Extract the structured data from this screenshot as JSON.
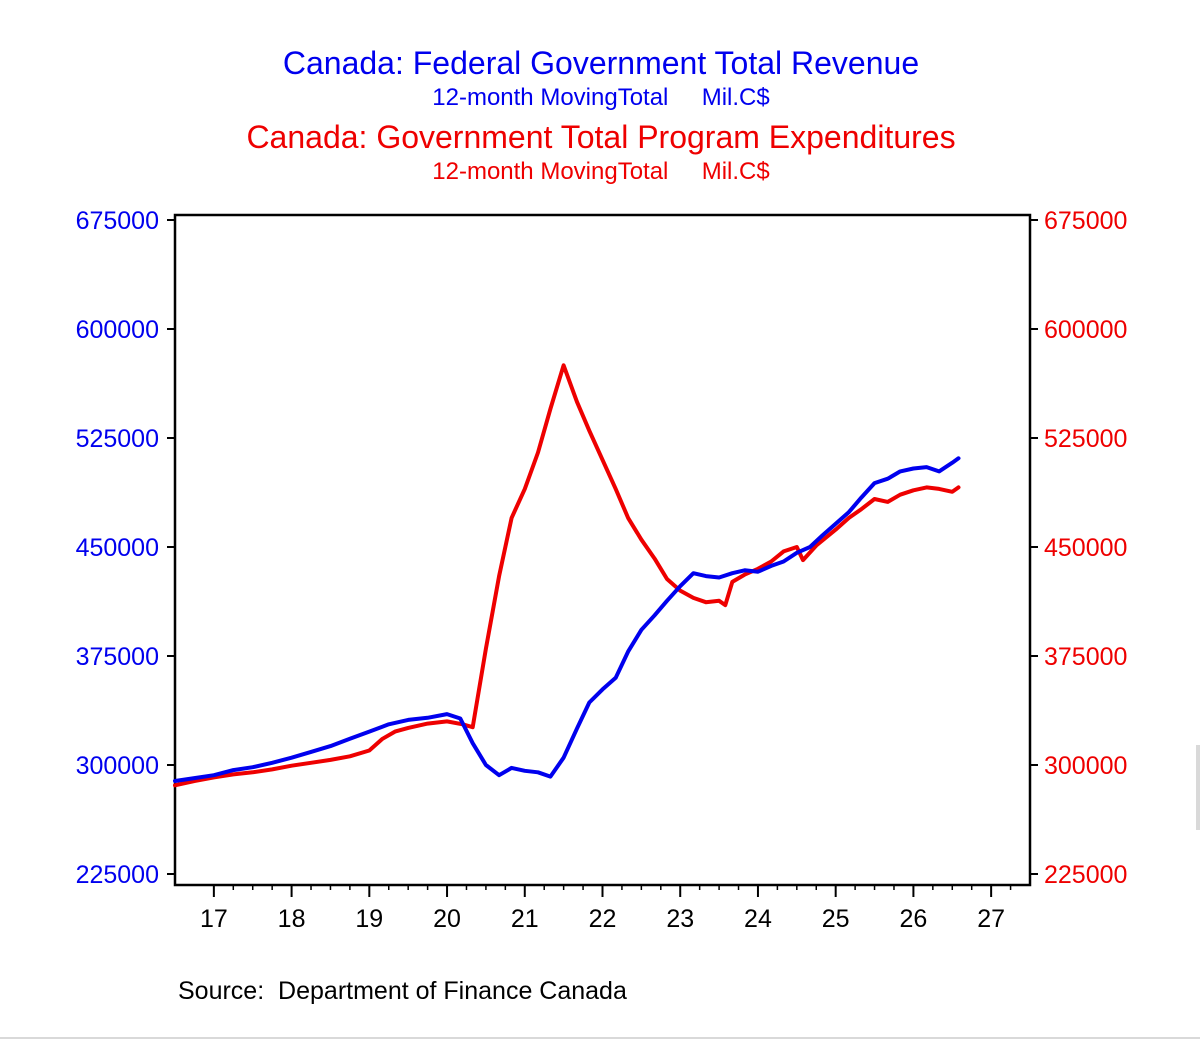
{
  "header": {
    "revenue_title": "Canada: Federal Government Total Revenue",
    "revenue_subtitle": "12-month MovingTotal     Mil.C$",
    "expenditure_title": "Canada: Government Total Program Expenditures",
    "expenditure_subtitle": "12-month MovingTotal     Mil.C$"
  },
  "footer": {
    "source": "Source:  Department of Finance Canada"
  },
  "colors": {
    "revenue": "#0000ee",
    "expenditure": "#ee0000",
    "axis": "#000000"
  },
  "chart_data": {
    "type": "line",
    "x_unit": "year",
    "xlim": [
      2016.5,
      2027.5
    ],
    "ylim": [
      225000,
      675000
    ],
    "x_tick_labels": [
      "17",
      "18",
      "19",
      "20",
      "21",
      "22",
      "23",
      "24",
      "25",
      "26",
      "27"
    ],
    "y_ticks": [
      225000,
      300000,
      375000,
      450000,
      525000,
      600000,
      675000
    ],
    "y_tick_labels": [
      "225000",
      "300000",
      "375000",
      "450000",
      "525000",
      "600000",
      "675000"
    ],
    "grid": false,
    "legend": "none",
    "series": [
      {
        "name": "Canada: Federal Government Total Revenue",
        "axis": "left",
        "points": [
          [
            2016.5,
            289000
          ],
          [
            2016.75,
            291000
          ],
          [
            2017.0,
            293000
          ],
          [
            2017.25,
            296500
          ],
          [
            2017.5,
            298500
          ],
          [
            2017.75,
            301500
          ],
          [
            2018.0,
            305000
          ],
          [
            2018.25,
            309000
          ],
          [
            2018.5,
            313000
          ],
          [
            2018.75,
            318000
          ],
          [
            2019.0,
            323000
          ],
          [
            2019.25,
            328000
          ],
          [
            2019.5,
            331000
          ],
          [
            2019.75,
            332500
          ],
          [
            2020.0,
            335000
          ],
          [
            2020.17,
            332000
          ],
          [
            2020.33,
            315000
          ],
          [
            2020.5,
            300000
          ],
          [
            2020.67,
            293000
          ],
          [
            2020.83,
            298000
          ],
          [
            2021.0,
            296000
          ],
          [
            2021.17,
            295000
          ],
          [
            2021.33,
            292000
          ],
          [
            2021.5,
            305000
          ],
          [
            2021.67,
            325000
          ],
          [
            2021.83,
            343000
          ],
          [
            2022.0,
            352000
          ],
          [
            2022.17,
            360000
          ],
          [
            2022.33,
            378000
          ],
          [
            2022.5,
            393000
          ],
          [
            2022.67,
            403000
          ],
          [
            2022.83,
            413000
          ],
          [
            2023.0,
            423000
          ],
          [
            2023.17,
            432000
          ],
          [
            2023.33,
            430000
          ],
          [
            2023.5,
            429000
          ],
          [
            2023.67,
            432000
          ],
          [
            2023.83,
            434000
          ],
          [
            2024.0,
            433000
          ],
          [
            2024.17,
            437000
          ],
          [
            2024.33,
            440000
          ],
          [
            2024.5,
            446000
          ],
          [
            2024.67,
            450000
          ],
          [
            2024.83,
            458000
          ],
          [
            2025.0,
            466000
          ],
          [
            2025.17,
            474000
          ],
          [
            2025.33,
            484000
          ],
          [
            2025.5,
            494000
          ],
          [
            2025.67,
            497000
          ],
          [
            2025.83,
            502000
          ],
          [
            2026.0,
            504000
          ],
          [
            2026.17,
            505000
          ],
          [
            2026.33,
            502000
          ],
          [
            2026.5,
            508000
          ],
          [
            2026.58,
            511000
          ]
        ]
      },
      {
        "name": "Canada: Government Total Program Expenditures",
        "axis": "right",
        "points": [
          [
            2016.5,
            286000
          ],
          [
            2016.75,
            289000
          ],
          [
            2017.0,
            291500
          ],
          [
            2017.25,
            293500
          ],
          [
            2017.5,
            295000
          ],
          [
            2017.75,
            297000
          ],
          [
            2018.0,
            299500
          ],
          [
            2018.25,
            301500
          ],
          [
            2018.5,
            303500
          ],
          [
            2018.75,
            306000
          ],
          [
            2019.0,
            310000
          ],
          [
            2019.17,
            318000
          ],
          [
            2019.33,
            323000
          ],
          [
            2019.5,
            325500
          ],
          [
            2019.75,
            328500
          ],
          [
            2020.0,
            330000
          ],
          [
            2020.2,
            328000
          ],
          [
            2020.33,
            326000
          ],
          [
            2020.5,
            380000
          ],
          [
            2020.67,
            430000
          ],
          [
            2020.83,
            470000
          ],
          [
            2021.0,
            490000
          ],
          [
            2021.17,
            515000
          ],
          [
            2021.33,
            545000
          ],
          [
            2021.5,
            575000
          ],
          [
            2021.67,
            550000
          ],
          [
            2021.83,
            530000
          ],
          [
            2022.0,
            510000
          ],
          [
            2022.17,
            490000
          ],
          [
            2022.33,
            470000
          ],
          [
            2022.5,
            455000
          ],
          [
            2022.67,
            442000
          ],
          [
            2022.83,
            428000
          ],
          [
            2023.0,
            420000
          ],
          [
            2023.17,
            415000
          ],
          [
            2023.33,
            412000
          ],
          [
            2023.5,
            413000
          ],
          [
            2023.58,
            410000
          ],
          [
            2023.67,
            426000
          ],
          [
            2023.83,
            431000
          ],
          [
            2024.0,
            435000
          ],
          [
            2024.17,
            440000
          ],
          [
            2024.33,
            447000
          ],
          [
            2024.5,
            450000
          ],
          [
            2024.58,
            441000
          ],
          [
            2024.75,
            451000
          ],
          [
            2025.0,
            462000
          ],
          [
            2025.17,
            470000
          ],
          [
            2025.33,
            476000
          ],
          [
            2025.5,
            483000
          ],
          [
            2025.67,
            481000
          ],
          [
            2025.83,
            486000
          ],
          [
            2026.0,
            489000
          ],
          [
            2026.17,
            491000
          ],
          [
            2026.33,
            490000
          ],
          [
            2026.5,
            488000
          ],
          [
            2026.58,
            491000
          ]
        ]
      }
    ]
  }
}
